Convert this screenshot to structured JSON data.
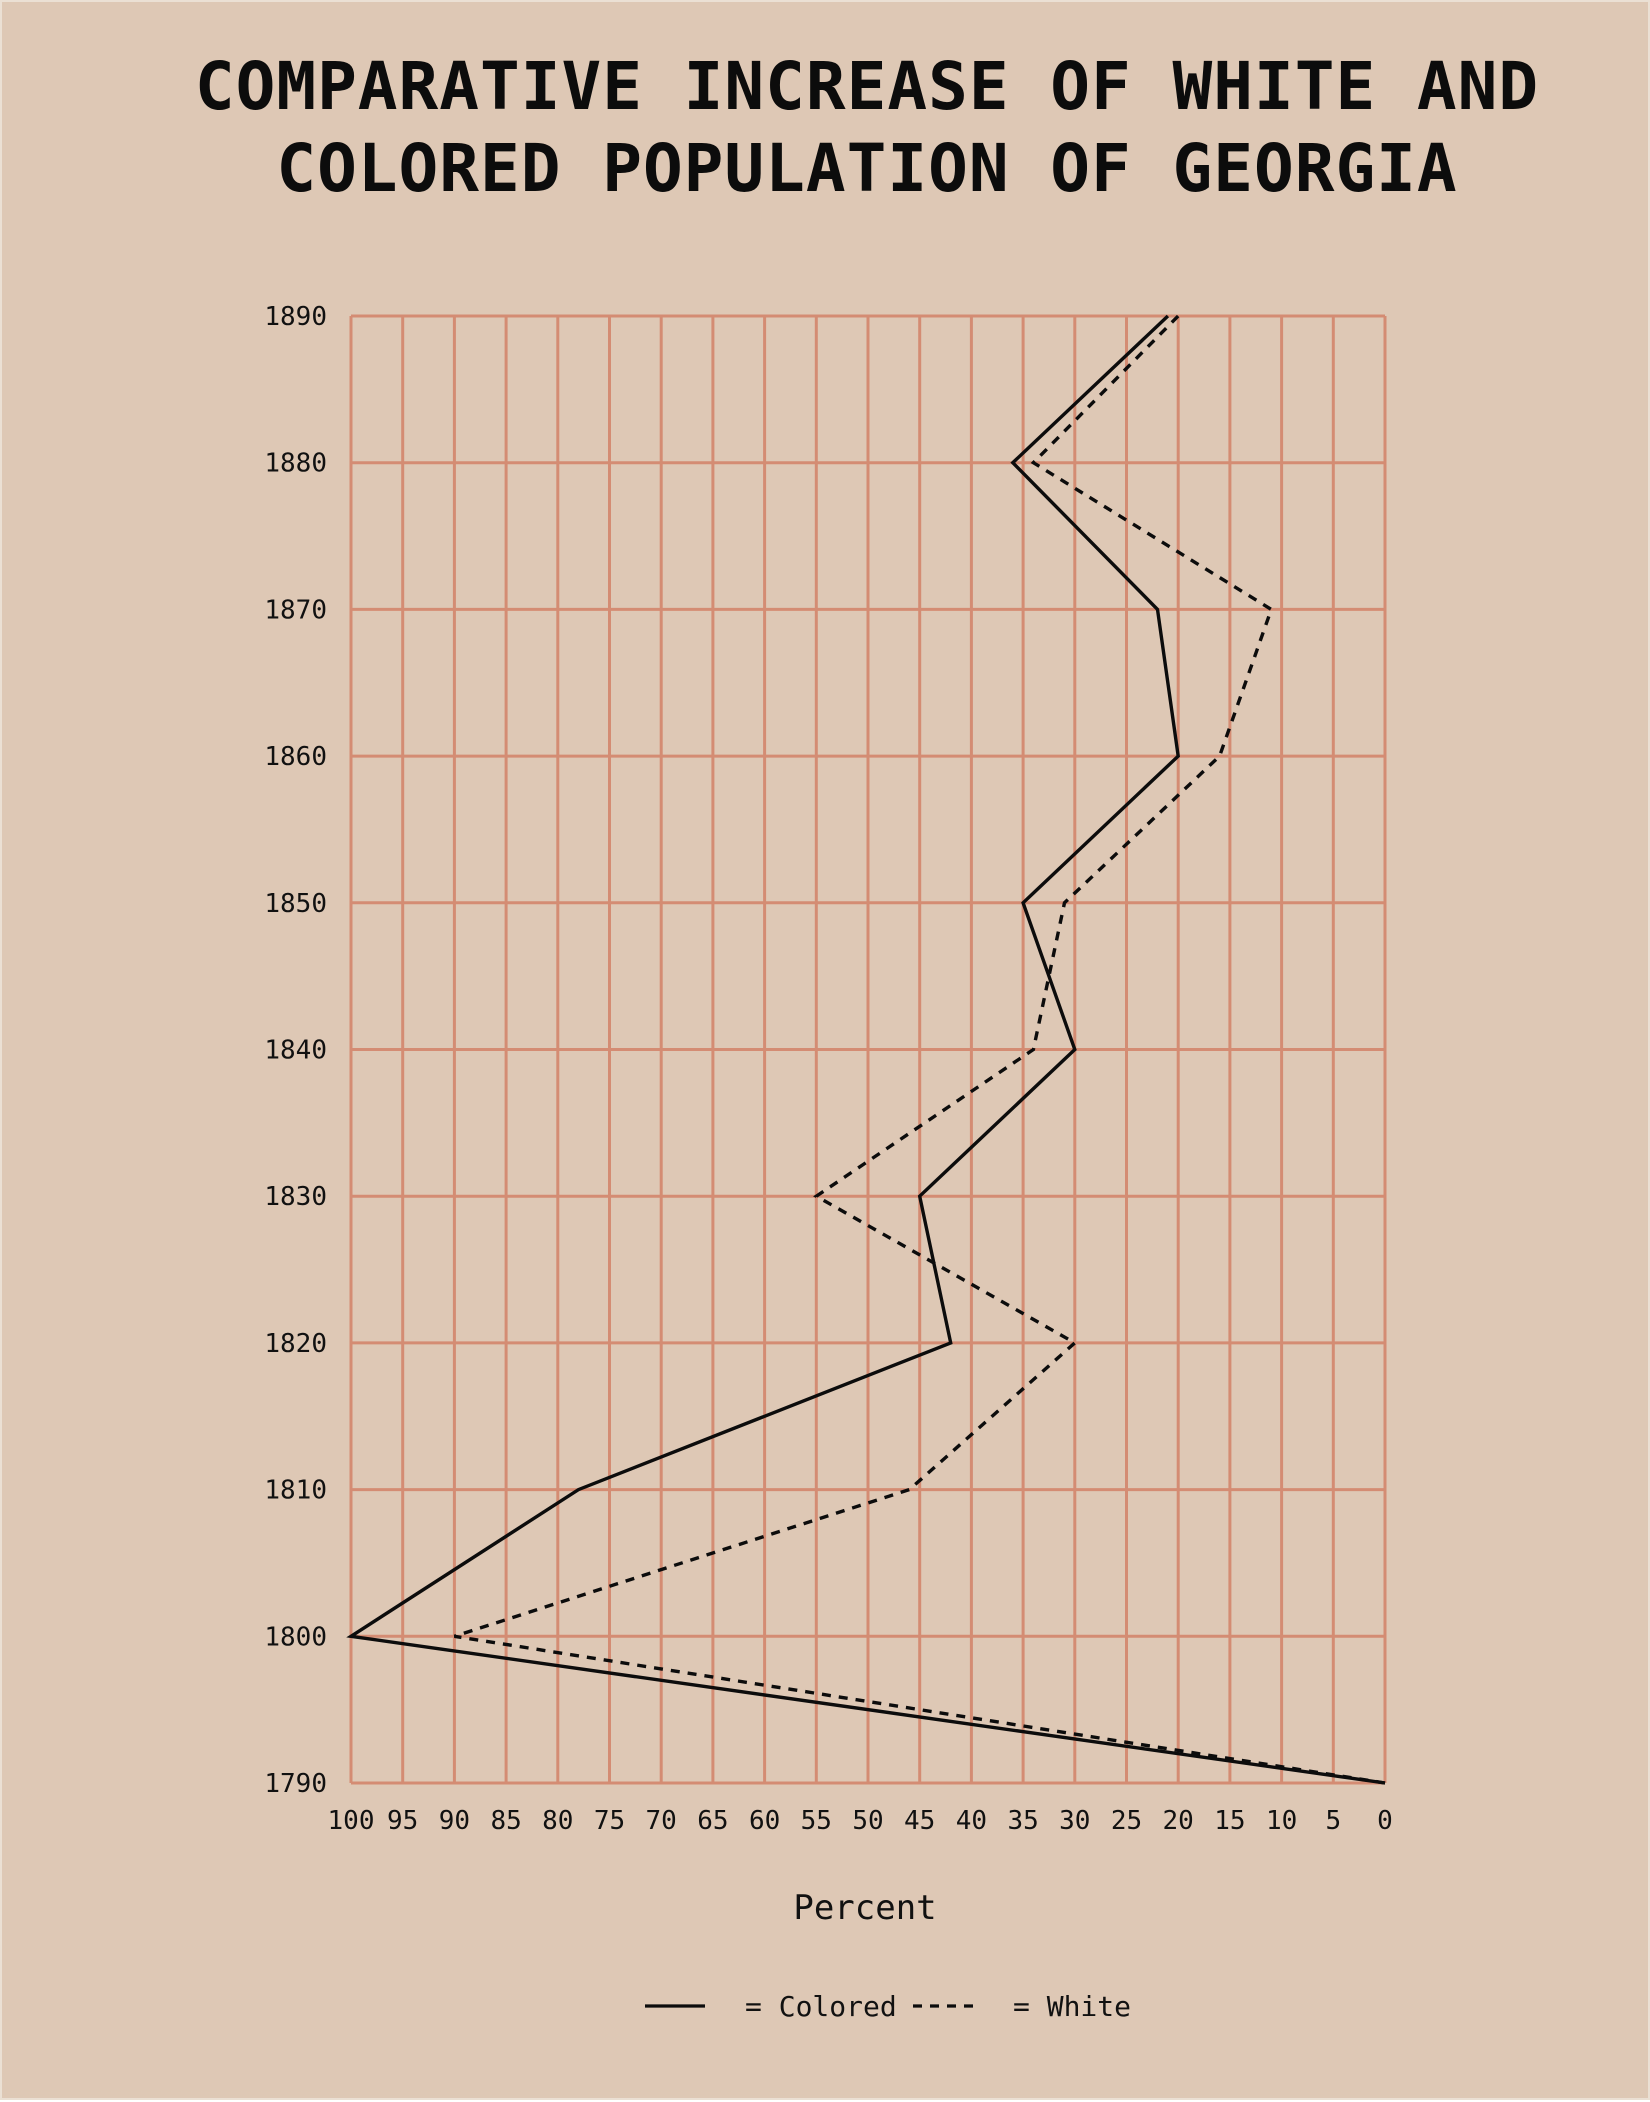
{
  "chart_data": {
    "type": "line",
    "title": "COMPARATIVE INCREASE OF WHITE AND COLORED POPULATION OF GEORGIA",
    "xlabel": "Percent",
    "ylabel": "",
    "xlim": [
      100,
      0
    ],
    "ylim": [
      1790,
      1890
    ],
    "x_ticks": [
      "100",
      "95",
      "90",
      "85",
      "80",
      "75",
      "70",
      "65",
      "60",
      "55",
      "50",
      "45",
      "40",
      "35",
      "30",
      "25",
      "20",
      "15",
      "10",
      "5",
      "0"
    ],
    "y_ticks": [
      "1790",
      "1800",
      "1810",
      "1820",
      "1830",
      "1840",
      "1850",
      "1860",
      "1870",
      "1880",
      "1890"
    ],
    "grid": true,
    "legend_position": "bottom",
    "series": [
      {
        "name": "Colored",
        "style": "solid",
        "points": [
          {
            "year": 1790,
            "percent": 0
          },
          {
            "year": 1800,
            "percent": 100
          },
          {
            "year": 1810,
            "percent": 78
          },
          {
            "year": 1820,
            "percent": 42
          },
          {
            "year": 1830,
            "percent": 45
          },
          {
            "year": 1840,
            "percent": 30
          },
          {
            "year": 1850,
            "percent": 35
          },
          {
            "year": 1860,
            "percent": 20
          },
          {
            "year": 1870,
            "percent": 22
          },
          {
            "year": 1880,
            "percent": 36
          },
          {
            "year": 1890,
            "percent": 21
          }
        ]
      },
      {
        "name": "White",
        "style": "dashed",
        "points": [
          {
            "year": 1790,
            "percent": 0
          },
          {
            "year": 1800,
            "percent": 90
          },
          {
            "year": 1810,
            "percent": 46
          },
          {
            "year": 1820,
            "percent": 30
          },
          {
            "year": 1830,
            "percent": 55
          },
          {
            "year": 1840,
            "percent": 34
          },
          {
            "year": 1850,
            "percent": 31
          },
          {
            "year": 1860,
            "percent": 16
          },
          {
            "year": 1870,
            "percent": 11
          },
          {
            "year": 1880,
            "percent": 34
          },
          {
            "year": 1890,
            "percent": 20
          }
        ]
      }
    ],
    "legend": [
      {
        "symbol": "solid",
        "label": "= Colored"
      },
      {
        "symbol": "dashed",
        "label": "= White"
      }
    ],
    "colors": {
      "background": "#dec8b5",
      "grid": "#d48c73",
      "line": "#0c0c0c"
    }
  }
}
